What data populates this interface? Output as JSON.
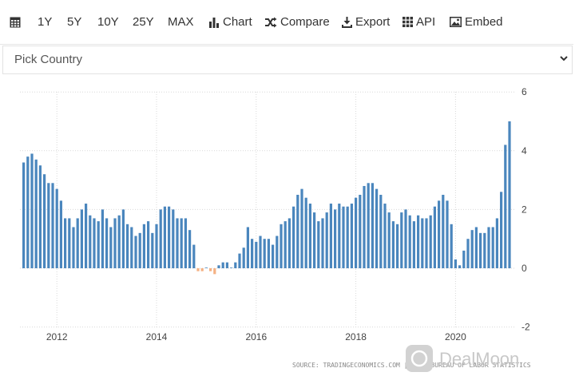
{
  "toolbar": {
    "calendar_icon": "calendar-icon",
    "ranges": [
      "1Y",
      "5Y",
      "10Y",
      "25Y",
      "MAX"
    ],
    "chart_label": "Chart",
    "compare_label": "Compare",
    "export_label": "Export",
    "api_label": "API",
    "embed_label": "Embed"
  },
  "country_select": {
    "value": "Pick Country"
  },
  "footer": {
    "source_text": "SOURCE: TRADINGECONOMICS.COM | U.S. BUREAU OF LABOR STATISTICS",
    "watermark": "DealMoon"
  },
  "colors": {
    "bar_positive": "#4a86bd",
    "bar_negative": "#f4b183",
    "grid": "#d9d9d9"
  },
  "chart_data": {
    "type": "bar",
    "x_ticks": [
      "2012",
      "2014",
      "2016",
      "2018",
      "2020"
    ],
    "y_ticks": [
      "6",
      "4",
      "2",
      "0",
      "-2"
    ],
    "ylim": [
      -2,
      6
    ],
    "start": "2011-05",
    "frequency": "monthly",
    "values": [
      3.6,
      3.8,
      3.9,
      3.7,
      3.5,
      3.2,
      2.9,
      2.9,
      2.7,
      2.3,
      1.7,
      1.7,
      1.4,
      1.7,
      2.0,
      2.2,
      1.8,
      1.7,
      1.6,
      2.0,
      1.7,
      1.4,
      1.7,
      1.8,
      2.0,
      1.5,
      1.4,
      1.1,
      1.2,
      1.5,
      1.6,
      1.2,
      1.5,
      2.0,
      2.1,
      2.1,
      2.0,
      1.7,
      1.7,
      1.7,
      1.3,
      0.8,
      -0.1,
      -0.1,
      0.0,
      -0.1,
      -0.2,
      0.1,
      0.2,
      0.2,
      0.0,
      0.2,
      0.5,
      0.7,
      1.4,
      1.0,
      0.9,
      1.1,
      1.0,
      1.0,
      0.8,
      1.1,
      1.5,
      1.6,
      1.7,
      2.1,
      2.5,
      2.7,
      2.4,
      2.2,
      1.9,
      1.6,
      1.7,
      1.9,
      2.2,
      2.0,
      2.2,
      2.1,
      2.1,
      2.2,
      2.4,
      2.5,
      2.8,
      2.9,
      2.9,
      2.7,
      2.5,
      2.2,
      1.9,
      1.6,
      1.5,
      1.9,
      2.0,
      1.8,
      1.6,
      1.8,
      1.7,
      1.7,
      1.8,
      2.1,
      2.3,
      2.5,
      2.3,
      1.5,
      0.3,
      0.1,
      0.6,
      1.0,
      1.3,
      1.4,
      1.2,
      1.2,
      1.4,
      1.4,
      1.7,
      2.6,
      4.2,
      5.0
    ],
    "source": "SOURCE: TRADINGECONOMICS.COM | U.S. BUREAU OF LABOR STATISTICS"
  }
}
